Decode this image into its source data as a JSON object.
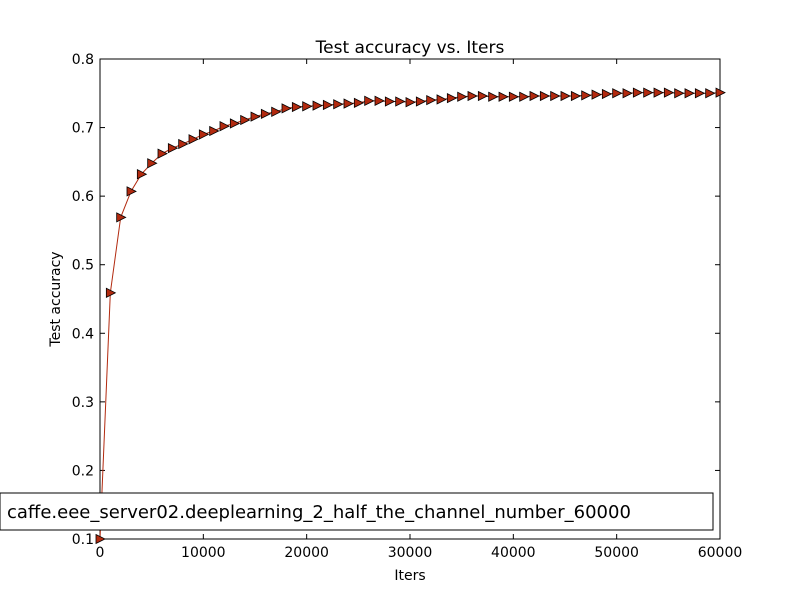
{
  "chart_data": {
    "type": "line",
    "title": "Test accuracy  vs. Iters",
    "xlabel": "Iters",
    "ylabel": "Test accuracy",
    "xlim": [
      0,
      60000
    ],
    "ylim": [
      0.1,
      0.8
    ],
    "xticks": [
      0,
      10000,
      20000,
      30000,
      40000,
      50000,
      60000
    ],
    "yticks": [
      0.1,
      0.2,
      0.3,
      0.4,
      0.5,
      0.6,
      0.7,
      0.8
    ],
    "legend_position": "bottom-left",
    "grid": false,
    "series": [
      {
        "name": "caffe.eee_server02.deeplearning_2_half_the_channel_number_60000",
        "color": "#b22a0f",
        "marker": "triangle-right",
        "x": [
          0,
          1000,
          2000,
          3000,
          4000,
          5000,
          6000,
          7000,
          8000,
          9000,
          10000,
          11000,
          12000,
          13000,
          14000,
          15000,
          16000,
          17000,
          18000,
          19000,
          20000,
          21000,
          22000,
          23000,
          24000,
          25000,
          26000,
          27000,
          28000,
          29000,
          30000,
          31000,
          32000,
          33000,
          34000,
          35000,
          36000,
          37000,
          38000,
          39000,
          40000,
          41000,
          42000,
          43000,
          44000,
          45000,
          46000,
          47000,
          48000,
          49000,
          50000,
          51000,
          52000,
          53000,
          54000,
          55000,
          56000,
          57000,
          58000,
          59000,
          60000
        ],
        "y": [
          0.1,
          0.459,
          0.569,
          0.607,
          0.632,
          0.648,
          0.662,
          0.67,
          0.676,
          0.683,
          0.69,
          0.695,
          0.702,
          0.706,
          0.711,
          0.716,
          0.72,
          0.723,
          0.728,
          0.73,
          0.731,
          0.732,
          0.733,
          0.734,
          0.735,
          0.736,
          0.739,
          0.739,
          0.738,
          0.738,
          0.737,
          0.738,
          0.74,
          0.741,
          0.743,
          0.745,
          0.746,
          0.746,
          0.745,
          0.745,
          0.745,
          0.745,
          0.746,
          0.746,
          0.746,
          0.746,
          0.746,
          0.747,
          0.748,
          0.749,
          0.75,
          0.75,
          0.751,
          0.751,
          0.751,
          0.751,
          0.75,
          0.75,
          0.75,
          0.75,
          0.751
        ]
      }
    ]
  }
}
